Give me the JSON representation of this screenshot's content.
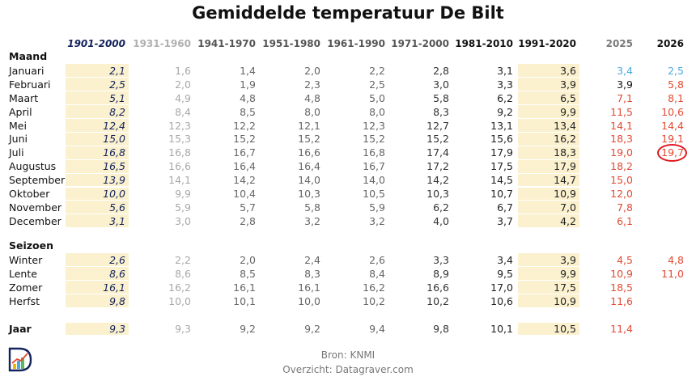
{
  "title": "Gemiddelde temperatuur De Bilt",
  "footer": {
    "source": "Bron: KNMI",
    "overview": "Overzicht: Datagraver.com"
  },
  "colors": {
    "navy": "#13235b",
    "gray": "#9a9a9a",
    "dark": "#2b2b2b",
    "blue": "#4aa8e0",
    "red": "#e24a33",
    "highlight": "#fbf1cf"
  },
  "chart_data": {
    "type": "table",
    "title": "Gemiddelde temperatuur De Bilt",
    "columns": [
      "1901-2000",
      "1931-1960",
      "1941-1970",
      "1951-1980",
      "1961-1990",
      "1971-2000",
      "1981-2010",
      "1991-2020",
      "2025",
      "2026"
    ],
    "sections": [
      {
        "heading": "Maand",
        "rows": [
          {
            "label": "Januari",
            "values": [
              "2,1",
              "1,6",
              "1,4",
              "2,0",
              "2,2",
              "2,8",
              "3,1",
              "3,6",
              "3,4",
              "2,5"
            ]
          },
          {
            "label": "Februari",
            "values": [
              "2,5",
              "2,0",
              "1,9",
              "2,3",
              "2,5",
              "3,0",
              "3,3",
              "3,9",
              "3,9",
              "5,8"
            ]
          },
          {
            "label": "Maart",
            "values": [
              "5,1",
              "4,9",
              "4,8",
              "4,8",
              "5,0",
              "5,8",
              "6,2",
              "6,5",
              "7,1",
              "8,1"
            ]
          },
          {
            "label": "April",
            "values": [
              "8,2",
              "8,4",
              "8,5",
              "8,0",
              "8,0",
              "8,3",
              "9,2",
              "9,9",
              "11,5",
              "10,6"
            ]
          },
          {
            "label": "Mei",
            "values": [
              "12,4",
              "12,3",
              "12,2",
              "12,1",
              "12,3",
              "12,7",
              "13,1",
              "13,4",
              "14,1",
              "14,4"
            ]
          },
          {
            "label": "Juni",
            "values": [
              "15,0",
              "15,3",
              "15,2",
              "15,2",
              "15,2",
              "15,2",
              "15,6",
              "16,2",
              "18,3",
              "19,1"
            ]
          },
          {
            "label": "Juli",
            "values": [
              "16,8",
              "16,8",
              "16,7",
              "16,6",
              "16,8",
              "17,4",
              "17,9",
              "18,3",
              "19,0",
              "19,7"
            ]
          },
          {
            "label": "Augustus",
            "values": [
              "16,5",
              "16,6",
              "16,4",
              "16,4",
              "16,7",
              "17,2",
              "17,5",
              "17,9",
              "18,2",
              ""
            ]
          },
          {
            "label": "September",
            "values": [
              "13,9",
              "14,1",
              "14,2",
              "14,0",
              "14,0",
              "14,2",
              "14,5",
              "14,7",
              "15,0",
              ""
            ]
          },
          {
            "label": "Oktober",
            "values": [
              "10,0",
              "9,9",
              "10,4",
              "10,3",
              "10,5",
              "10,3",
              "10,7",
              "10,9",
              "12,0",
              ""
            ]
          },
          {
            "label": "November",
            "values": [
              "5,6",
              "5,9",
              "5,7",
              "5,8",
              "5,9",
              "6,2",
              "6,7",
              "7,0",
              "7,8",
              ""
            ]
          },
          {
            "label": "December",
            "values": [
              "3,1",
              "3,0",
              "2,8",
              "3,2",
              "3,2",
              "4,0",
              "3,7",
              "4,2",
              "6,1",
              ""
            ]
          }
        ]
      },
      {
        "heading": "Seizoen",
        "rows": [
          {
            "label": "Winter",
            "values": [
              "2,6",
              "2,2",
              "2,0",
              "2,4",
              "2,6",
              "3,3",
              "3,4",
              "3,9",
              "4,5",
              "4,8"
            ]
          },
          {
            "label": "Lente",
            "values": [
              "8,6",
              "8,6",
              "8,5",
              "8,3",
              "8,4",
              "8,9",
              "9,5",
              "9,9",
              "10,9",
              "11,0"
            ]
          },
          {
            "label": "Zomer",
            "values": [
              "16,1",
              "16,2",
              "16,1",
              "16,1",
              "16,2",
              "16,6",
              "17,0",
              "17,5",
              "18,5",
              ""
            ]
          },
          {
            "label": "Herfst",
            "values": [
              "9,8",
              "10,0",
              "10,1",
              "10,0",
              "10,2",
              "10,2",
              "10,6",
              "10,9",
              "11,6",
              ""
            ]
          }
        ]
      },
      {
        "heading": "",
        "rows": [
          {
            "label": "Jaar",
            "values": [
              "9,3",
              "9,3",
              "9,2",
              "9,2",
              "9,4",
              "9,8",
              "10,1",
              "10,5",
              "11,4",
              ""
            ]
          }
        ]
      }
    ],
    "highlighted_columns": [
      "1901-2000",
      "1991-2020"
    ],
    "blue_cells": [
      [
        "Januari",
        "2025"
      ],
      [
        "Januari",
        "2026"
      ]
    ],
    "circled_cell": [
      "Juli",
      "2026"
    ]
  }
}
